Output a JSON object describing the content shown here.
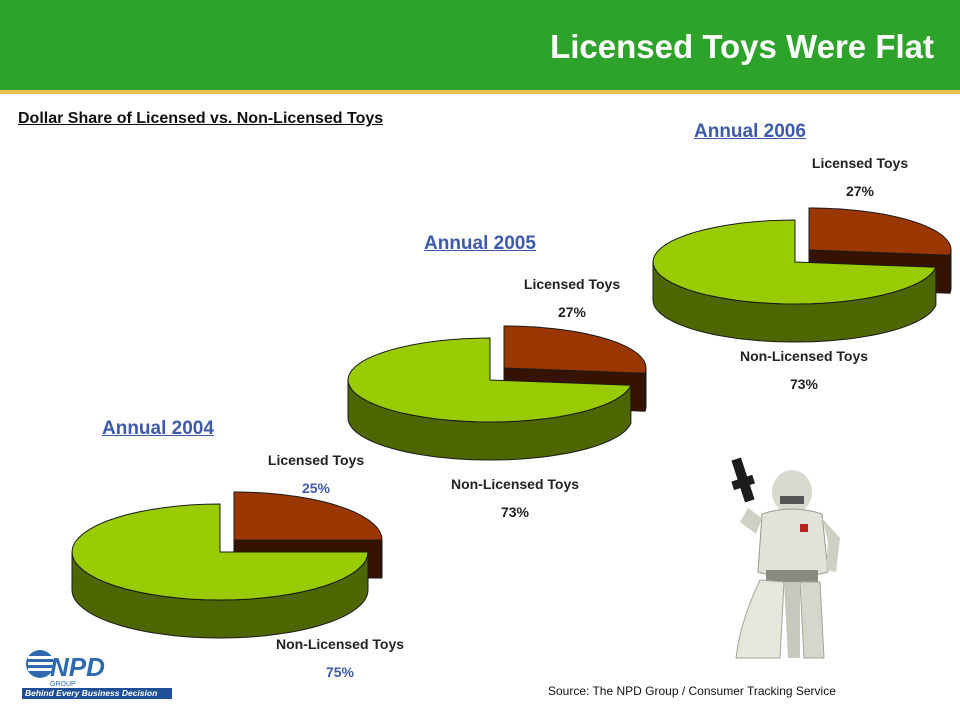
{
  "header": {
    "title": "Licensed Toys Were Flat"
  },
  "subtitle": "Dollar Share of Licensed vs. Non-Licensed Toys",
  "source": "Source:  The NPD Group / Consumer Tracking Service",
  "logo": {
    "name": "NPD",
    "group": "GROUP",
    "tagline": "Behind Every Business Decision"
  },
  "colors": {
    "header": "#2ea32b",
    "licensed": "#9a3700",
    "nonlicensed": "#99cc00",
    "year": "#3d5aa8",
    "blue_pct": "#3d5aa8"
  },
  "chart_data": [
    {
      "type": "pie",
      "title": "Annual 2004",
      "slices": [
        {
          "label": "Licensed Toys",
          "value": 25,
          "display": "25%"
        },
        {
          "label": "Non-Licensed Toys",
          "value": 75,
          "display": "75%"
        }
      ]
    },
    {
      "type": "pie",
      "title": "Annual 2005",
      "slices": [
        {
          "label": "Licensed Toys",
          "value": 27,
          "display": "27%"
        },
        {
          "label": "Non-Licensed Toys",
          "value": 73,
          "display": "73%"
        }
      ]
    },
    {
      "type": "pie",
      "title": "Annual 2006",
      "slices": [
        {
          "label": "Licensed Toys",
          "value": 27,
          "display": "27%"
        },
        {
          "label": "Non-Licensed Toys",
          "value": 73,
          "display": "73%"
        }
      ]
    }
  ]
}
